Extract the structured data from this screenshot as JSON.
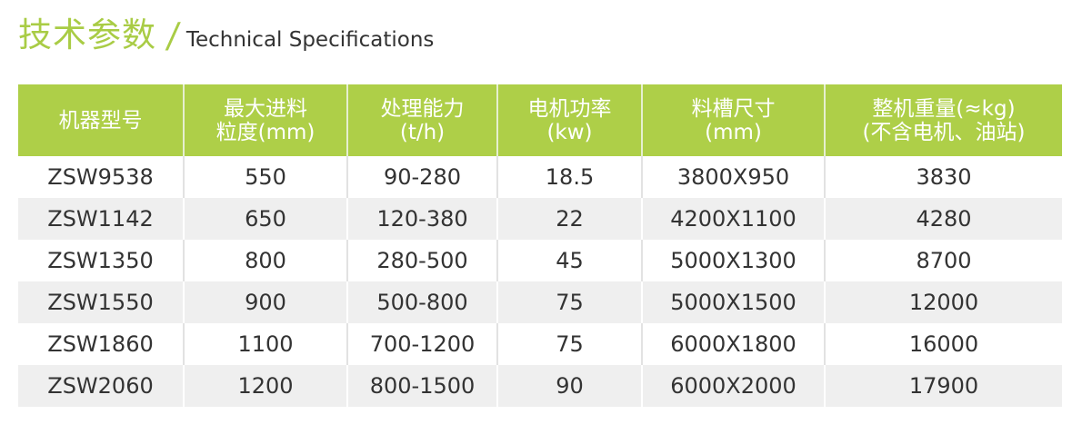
{
  "title": {
    "cn": "技术参数",
    "separator": "/",
    "en": "Technical Specifications"
  },
  "colors": {
    "accent": "#aecf48",
    "row_alt": "#efefef",
    "text": "#333333"
  },
  "table": {
    "headers": [
      [
        "机器型号"
      ],
      [
        "最大进料",
        "粒度(mm)"
      ],
      [
        "处理能力",
        "(t/h)"
      ],
      [
        "电机功率",
        "(kw)"
      ],
      [
        "料槽尺寸",
        "(mm)"
      ],
      [
        "整机重量(≈kg)",
        "(不含电机、油站)"
      ]
    ],
    "rows": [
      [
        "ZSW9538",
        "550",
        "90-280",
        "18.5",
        "3800X950",
        "3830"
      ],
      [
        "ZSW1142",
        "650",
        "120-380",
        "22",
        "4200X1100",
        "4280"
      ],
      [
        "ZSW1350",
        "800",
        "280-500",
        "45",
        "5000X1300",
        "8700"
      ],
      [
        "ZSW1550",
        "900",
        "500-800",
        "75",
        "5000X1500",
        "12000"
      ],
      [
        "ZSW1860",
        "1100",
        "700-1200",
        "75",
        "6000X1800",
        "16000"
      ],
      [
        "ZSW2060",
        "1200",
        "800-1500",
        "90",
        "6000X2000",
        "17900"
      ]
    ]
  }
}
